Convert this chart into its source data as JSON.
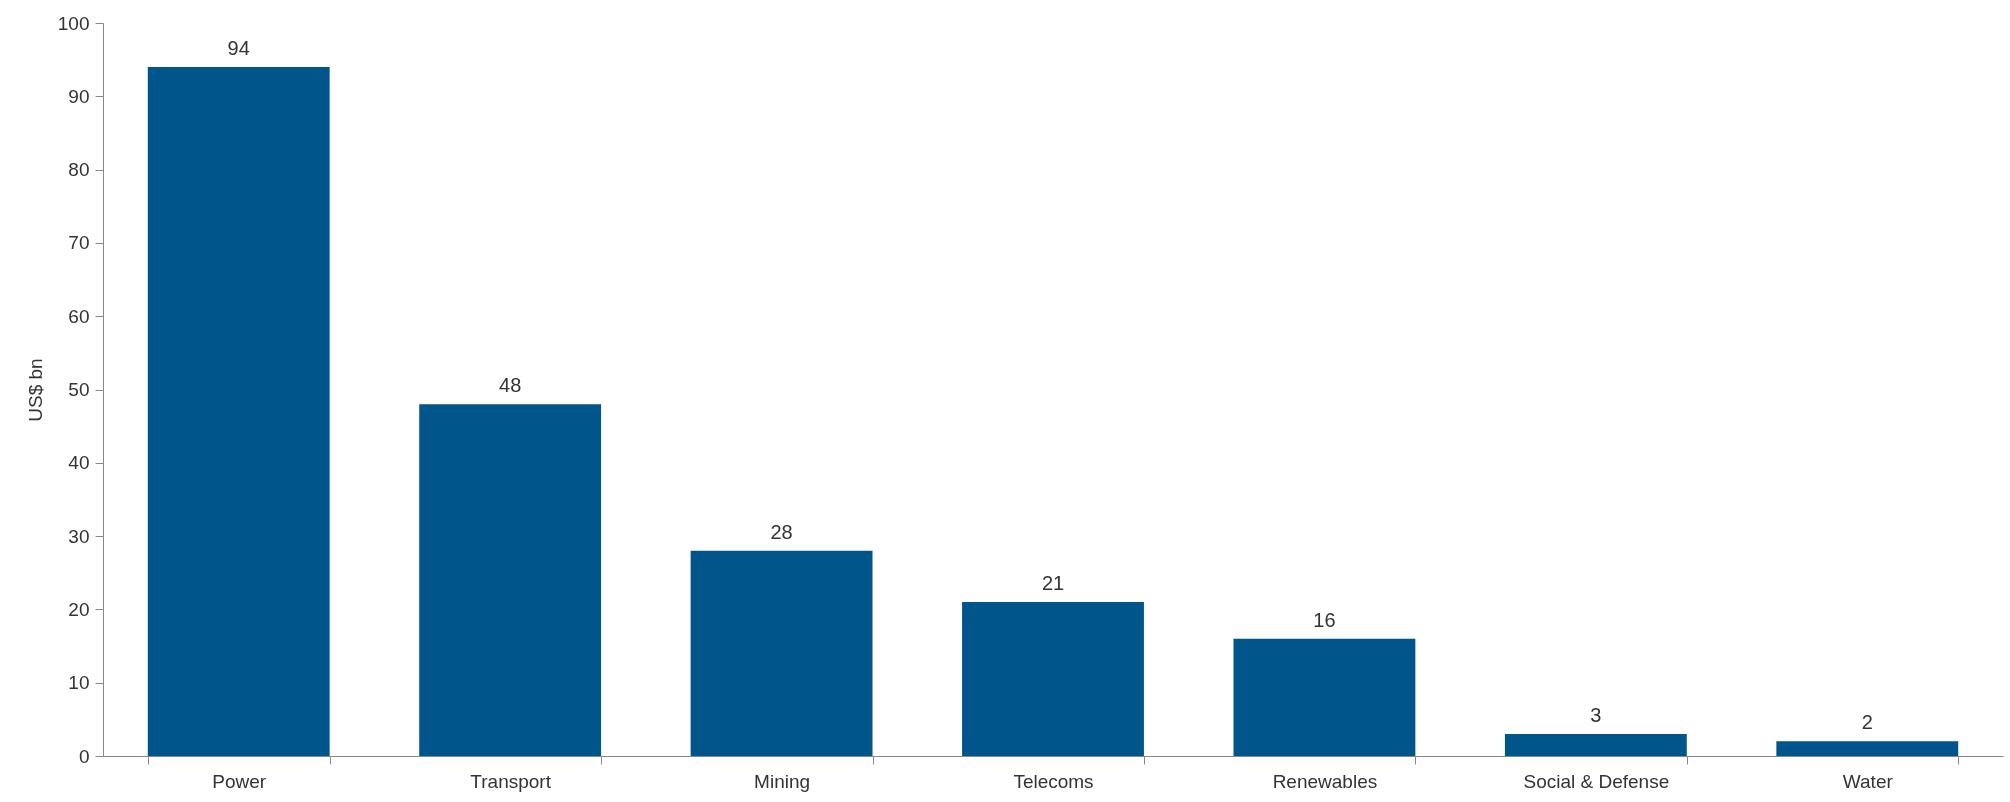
{
  "chart_data": {
    "type": "bar",
    "ylabel": "US$ bn",
    "categories": [
      "Power",
      "Transport",
      "Mining",
      "Telecoms",
      "Renewables",
      "Social & Defense",
      "Water"
    ],
    "values": [
      94,
      48,
      28,
      21,
      16,
      3,
      2
    ],
    "color": "#00558b",
    "ylim": [
      0,
      100
    ],
    "yticks": [
      0,
      10,
      20,
      30,
      40,
      50,
      60,
      70,
      80,
      90,
      100
    ],
    "data_labels": true,
    "grid": false
  }
}
